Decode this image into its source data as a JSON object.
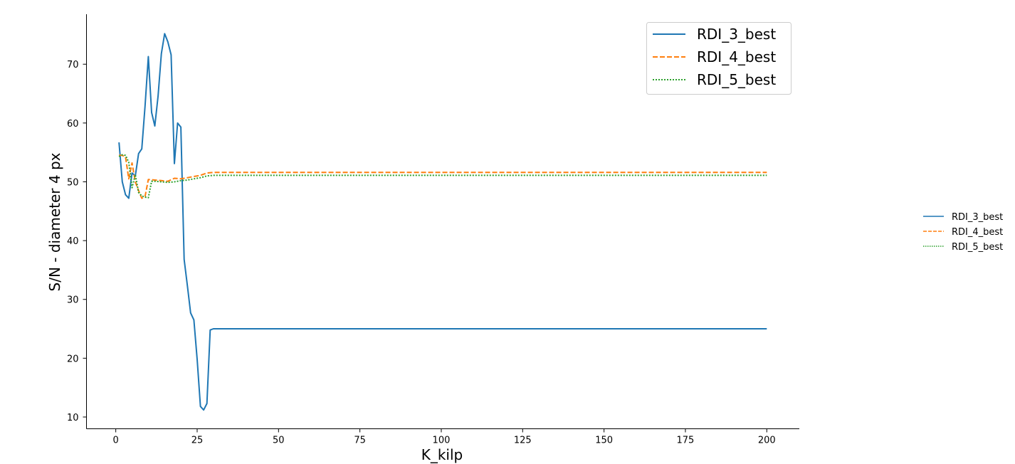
{
  "chart_data": {
    "type": "line",
    "title": "",
    "xlabel": "K_kilp",
    "ylabel": "S/N - diameter 4 px",
    "xlim": [
      -9,
      210
    ],
    "ylim": [
      8,
      78.5
    ],
    "xticks": [
      0,
      25,
      50,
      75,
      100,
      125,
      150,
      175,
      200
    ],
    "yticks": [
      10,
      20,
      30,
      40,
      50,
      60,
      70
    ],
    "xtick_labels": [
      "0",
      "25",
      "50",
      "75",
      "100",
      "125",
      "150",
      "175",
      "200"
    ],
    "ytick_labels": [
      "10",
      "20",
      "30",
      "40",
      "50",
      "60",
      "70"
    ],
    "grid": false,
    "legend_placement": "top-right",
    "series": [
      {
        "name": "RDI_3_best",
        "color": "#1f77b4",
        "style": "solid",
        "x": [
          1,
          2,
          3,
          4,
          5,
          6,
          7,
          8,
          9,
          10,
          11,
          12,
          13,
          14,
          15,
          16,
          17,
          18,
          19,
          20,
          21,
          22,
          23,
          24,
          25,
          26,
          27,
          28,
          29,
          30,
          200
        ],
        "y": [
          56.7,
          50.0,
          47.8,
          47.2,
          51.5,
          51.0,
          54.8,
          55.6,
          62.9,
          71.3,
          61.8,
          59.5,
          64.6,
          71.8,
          75.2,
          73.8,
          71.6,
          53.1,
          60.0,
          59.3,
          36.8,
          32.3,
          27.7,
          26.5,
          19.8,
          11.8,
          11.2,
          12.3,
          24.8,
          25.0,
          25.0
        ]
      },
      {
        "name": "RDI_4_best",
        "color": "#ff7f0e",
        "style": "dashed",
        "x": [
          1,
          2,
          3,
          4,
          5,
          6,
          7,
          8,
          9,
          10,
          12,
          14,
          16,
          18,
          20,
          22,
          24,
          26,
          28,
          30,
          200
        ],
        "y": [
          54.5,
          54.5,
          54.2,
          50.5,
          53.2,
          50.0,
          48.5,
          47.2,
          47.5,
          50.4,
          50.3,
          50.2,
          50.1,
          50.6,
          50.5,
          50.7,
          50.9,
          51.1,
          51.5,
          51.6,
          51.6
        ]
      },
      {
        "name": "RDI_5_best",
        "color": "#2ca02c",
        "style": "dotted",
        "x": [
          1,
          2,
          3,
          4,
          5,
          6,
          7,
          8,
          9,
          10,
          11,
          12,
          14,
          16,
          18,
          20,
          22,
          24,
          26,
          28,
          30,
          200
        ],
        "y": [
          54.3,
          54.6,
          54.5,
          53.3,
          49.0,
          51.2,
          48.2,
          47.6,
          47.4,
          47.3,
          50.1,
          50.1,
          50.0,
          49.9,
          50.0,
          50.2,
          50.3,
          50.5,
          50.7,
          51.0,
          51.1,
          51.1
        ]
      }
    ]
  }
}
